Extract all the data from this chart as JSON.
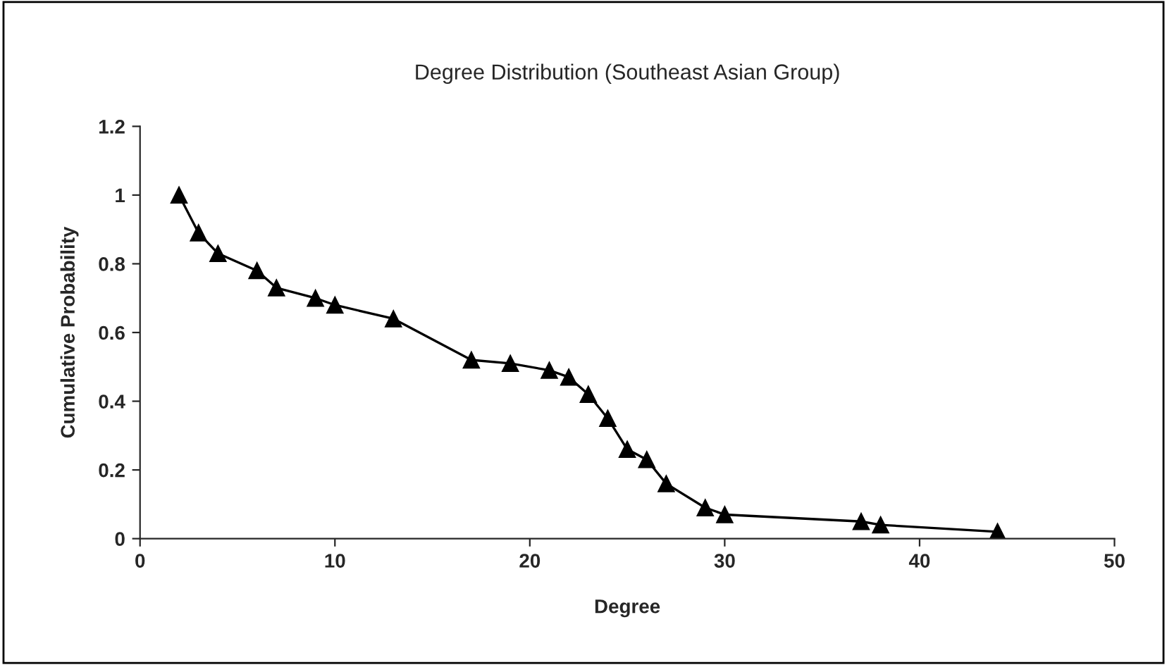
{
  "chart_data": {
    "type": "line",
    "title": "Degree Distribution (Southeast Asian Group)",
    "xlabel": "Degree",
    "ylabel": "Cumulative Probability",
    "series": [
      {
        "color": "#000000",
        "x": [
          2,
          3,
          4,
          6,
          7,
          9,
          10,
          13,
          17,
          19,
          21,
          22,
          23,
          24,
          25,
          26,
          27,
          29,
          30,
          37,
          38,
          44
        ],
        "values": [
          1.0,
          0.89,
          0.83,
          0.78,
          0.73,
          0.7,
          0.68,
          0.64,
          0.52,
          0.51,
          0.49,
          0.47,
          0.42,
          0.35,
          0.26,
          0.23,
          0.16,
          0.09,
          0.07,
          0.05,
          0.04,
          0.02
        ]
      }
    ],
    "xlim": [
      0,
      50
    ],
    "xticks": [
      0,
      10,
      20,
      30,
      40,
      50
    ],
    "ylim": [
      0,
      1.2
    ],
    "yticks": [
      0,
      0.2,
      0.4,
      0.6,
      0.8,
      1,
      1.2
    ],
    "marker": "triangle",
    "line_style": "solid",
    "grid": false,
    "legend": false
  }
}
